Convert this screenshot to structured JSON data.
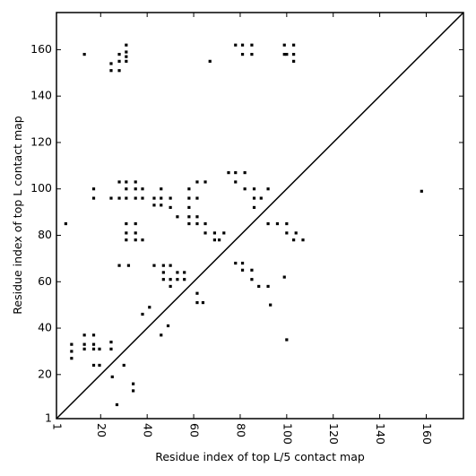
{
  "chart_data": {
    "type": "scatter",
    "x_label": "Residue index of top L/5 contact map",
    "y_label": "Residue index of top L contact map",
    "xlim": [
      1,
      176
    ],
    "ylim": [
      1,
      176
    ],
    "xticks": [
      1,
      20,
      40,
      60,
      80,
      100,
      120,
      140,
      160
    ],
    "yticks": [
      1,
      20,
      40,
      60,
      80,
      100,
      120,
      140,
      160
    ],
    "color": "#000000",
    "x": [
      13,
      24.5,
      24.5,
      28,
      28,
      28,
      31,
      31,
      31,
      31,
      67,
      78,
      81,
      85,
      81,
      85,
      99,
      103,
      99,
      100,
      103,
      103,
      5,
      17,
      17,
      24.5,
      28,
      28,
      31,
      31,
      31,
      31,
      31,
      31,
      35,
      35,
      35,
      35,
      35,
      35,
      38,
      38,
      38,
      43,
      43,
      46,
      46,
      46,
      50,
      50,
      53,
      58,
      58,
      58,
      58,
      58,
      61.5,
      61.5,
      61.5,
      61.5,
      65,
      65,
      65,
      69,
      69,
      73,
      71,
      75,
      78,
      78,
      82,
      82,
      86,
      86,
      86,
      89,
      92,
      92,
      96,
      100,
      100,
      104,
      107,
      103,
      158,
      28,
      32,
      43,
      47,
      47,
      47,
      50,
      50,
      50,
      53,
      53,
      56,
      56,
      61.5,
      61.5,
      64,
      78,
      81,
      81,
      85,
      85,
      88,
      92,
      93,
      99,
      100,
      38,
      41,
      46,
      49,
      7.5,
      7.5,
      7.5,
      13,
      13,
      13,
      17,
      17,
      17,
      17,
      19.5,
      19.5,
      24.5,
      24.5,
      25,
      30,
      34,
      34,
      27
    ],
    "values": [
      158,
      154,
      151,
      158,
      155,
      151,
      162,
      159,
      157,
      155,
      155,
      162,
      162,
      162,
      158,
      158,
      162,
      162,
      158,
      158,
      158,
      155,
      85,
      100,
      96,
      96,
      103,
      96,
      103,
      100,
      96,
      85,
      81,
      78,
      103,
      100,
      96,
      85,
      81,
      78,
      100,
      96,
      78,
      96,
      93,
      100,
      96,
      93,
      96,
      92,
      88,
      100,
      96,
      92,
      88,
      85,
      103,
      96,
      88,
      85,
      103,
      85,
      81,
      81,
      78,
      81,
      78,
      107,
      107,
      103,
      107,
      100,
      100,
      96,
      92,
      96,
      100,
      85,
      85,
      85,
      81,
      81,
      78,
      78,
      99,
      67,
      67,
      67,
      67,
      64,
      61,
      67,
      61,
      58,
      64,
      61,
      64,
      61,
      55,
      51,
      51,
      68,
      68,
      65,
      65,
      61,
      58,
      58,
      50,
      62,
      35,
      46,
      49,
      37,
      41,
      33,
      30,
      27,
      37,
      33,
      31,
      37,
      33,
      31,
      24,
      31,
      24,
      34,
      31,
      19,
      24,
      16,
      13,
      7
    ]
  }
}
